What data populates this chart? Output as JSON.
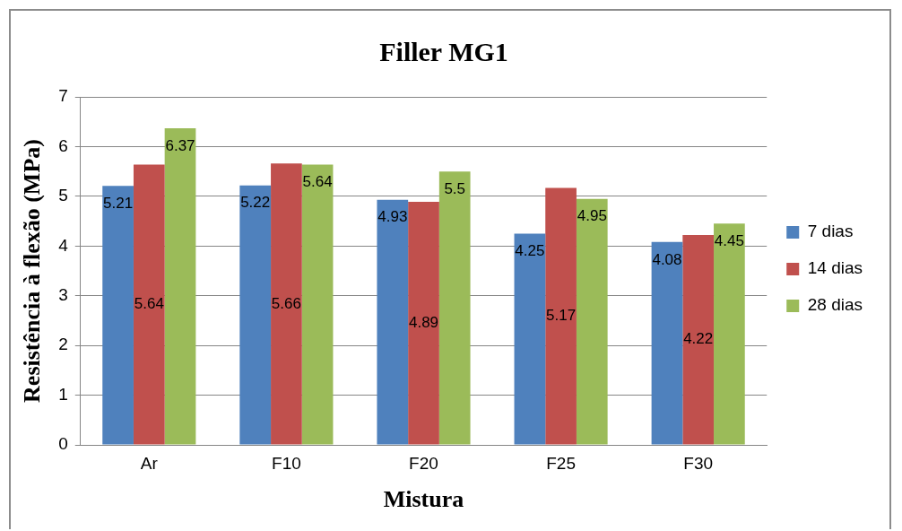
{
  "chart_data": {
    "type": "bar",
    "title": "Filler MG1",
    "xlabel": "Mistura",
    "ylabel": "Resistência à flexão (MPa)",
    "categories": [
      "Ar",
      "F10",
      "F20",
      "F25",
      "F30"
    ],
    "series": [
      {
        "name": "7 dias",
        "color": "#4f81bd",
        "values": [
          5.21,
          5.22,
          4.93,
          4.25,
          4.08
        ]
      },
      {
        "name": "14 dias",
        "color": "#c0504d",
        "values": [
          5.64,
          5.66,
          4.89,
          5.17,
          4.22
        ]
      },
      {
        "name": "28 dias",
        "color": "#9bbb59",
        "values": [
          6.37,
          5.64,
          5.5,
          4.95,
          4.45
        ]
      }
    ],
    "ylim": [
      0,
      7
    ],
    "yticks": [
      0,
      1,
      2,
      3,
      4,
      5,
      6,
      7
    ],
    "grid": "y",
    "legend": "right",
    "data_labels": true
  }
}
